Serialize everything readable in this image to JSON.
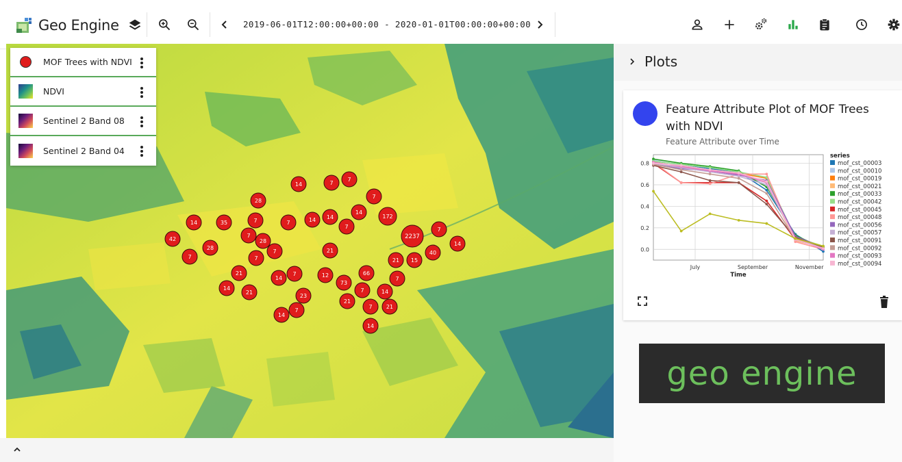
{
  "app": {
    "title": "Geo Engine"
  },
  "toolbar": {
    "time_range": "2019-06-01T12:00:00+00:00 - 2020-01-01T00:00:00+00:00",
    "icons": [
      "layers-icon",
      "zoom-in-icon",
      "zoom-out-icon",
      "time-back-icon",
      "time-forward-icon",
      "user-icon",
      "add-icon",
      "operators-icon",
      "plots-icon",
      "clipboard-icon",
      "history-icon",
      "settings-icon"
    ]
  },
  "layers": [
    {
      "label": "MOF Trees with NDVI",
      "symbol": "point",
      "color": "#e01c1c"
    },
    {
      "label": "NDVI",
      "symbol": "ndvi"
    },
    {
      "label": "Sentinel 2 Band 08",
      "symbol": "band"
    },
    {
      "label": "Sentinel 2 Band 04",
      "symbol": "band"
    }
  ],
  "map": {
    "clusters": [
      {
        "label": "14"
      },
      {
        "label": "7"
      },
      {
        "label": "7"
      },
      {
        "label": "7"
      },
      {
        "label": "28"
      },
      {
        "label": "14"
      },
      {
        "label": "172"
      },
      {
        "label": "14"
      },
      {
        "label": "35"
      },
      {
        "label": "7"
      },
      {
        "label": "7"
      },
      {
        "label": "14"
      },
      {
        "label": "14"
      },
      {
        "label": "7"
      },
      {
        "label": "7"
      },
      {
        "label": "2237"
      },
      {
        "label": "14"
      },
      {
        "label": "42"
      },
      {
        "label": "7"
      },
      {
        "label": "28"
      },
      {
        "label": "28"
      },
      {
        "label": "7"
      },
      {
        "label": "21"
      },
      {
        "label": "40"
      },
      {
        "label": "7"
      },
      {
        "label": "7"
      },
      {
        "label": "21"
      },
      {
        "label": "15"
      },
      {
        "label": "21"
      },
      {
        "label": "66"
      },
      {
        "label": "12"
      },
      {
        "label": "14"
      },
      {
        "label": "7"
      },
      {
        "label": "7"
      },
      {
        "label": "73"
      },
      {
        "label": "14"
      },
      {
        "label": "21"
      },
      {
        "label": "7"
      },
      {
        "label": "14"
      },
      {
        "label": "23"
      },
      {
        "label": "21"
      },
      {
        "label": "7"
      },
      {
        "label": "21"
      },
      {
        "label": "14"
      },
      {
        "label": "7"
      },
      {
        "label": "14"
      }
    ],
    "cluster_color": "#e01c1c"
  },
  "plots_panel": {
    "title": "Plots",
    "card": {
      "title": "Feature Attribute Plot of MOF Trees with NDVI",
      "subtitle": "Feature Attribute over Time",
      "avatar_color": "#3344ee"
    }
  },
  "chart_data": {
    "type": "line",
    "x": [
      "2019-06-01",
      "2019-07-01",
      "2019-08-01",
      "2019-09-01",
      "2019-10-01",
      "2019-11-01",
      "2019-12-01"
    ],
    "xlabel": "Time",
    "ylabel": "",
    "x_ticks": [
      "July",
      "September",
      "November"
    ],
    "y_ticks": [
      "0.0",
      "0.2",
      "0.4",
      "0.6",
      "0.8"
    ],
    "ylim": [
      -0.1,
      0.88
    ],
    "legend_title": "series",
    "legend_position": "right",
    "grid": true,
    "series": [
      {
        "name": "mof_cst_00003",
        "color": "#1f77b4",
        "values": [
          0.82,
          0.79,
          0.75,
          0.72,
          0.55,
          0.14,
          -0.02
        ]
      },
      {
        "name": "mof_cst_00010",
        "color": "#aec7e8",
        "values": [
          0.83,
          0.78,
          0.74,
          0.7,
          0.6,
          0.12,
          0.0
        ]
      },
      {
        "name": "mof_cst_00019",
        "color": "#ff7f0e",
        "values": [
          0.81,
          0.77,
          0.74,
          0.71,
          0.66,
          0.1,
          0.01
        ]
      },
      {
        "name": "mof_cst_00021",
        "color": "#ffbb78",
        "values": [
          0.8,
          0.76,
          0.73,
          0.7,
          0.62,
          0.08,
          0.02
        ]
      },
      {
        "name": "mof_cst_00033",
        "color": "#2ca02c",
        "values": [
          0.84,
          0.8,
          0.77,
          0.73,
          0.58,
          0.13,
          0.01
        ]
      },
      {
        "name": "mof_cst_00042",
        "color": "#98df8a",
        "values": [
          0.82,
          0.79,
          0.76,
          0.72,
          0.67,
          0.11,
          0.03
        ]
      },
      {
        "name": "mof_cst_00045",
        "color": "#d62728",
        "values": [
          0.8,
          0.62,
          0.62,
          0.62,
          0.45,
          0.09,
          0.01
        ]
      },
      {
        "name": "mof_cst_00048",
        "color": "#ff9896",
        "values": [
          0.81,
          0.62,
          0.61,
          0.7,
          0.7,
          0.07,
          0.0
        ]
      },
      {
        "name": "mof_cst_00056",
        "color": "#9467bd",
        "values": [
          0.79,
          0.75,
          0.73,
          0.69,
          0.64,
          0.12,
          0.02
        ]
      },
      {
        "name": "mof_cst_00057",
        "color": "#c5b0d5",
        "values": [
          0.8,
          0.76,
          0.72,
          0.68,
          0.6,
          0.1,
          0.01
        ]
      },
      {
        "name": "mof_cst_00091",
        "color": "#8c564b",
        "values": [
          0.78,
          0.72,
          0.64,
          0.62,
          0.42,
          0.11,
          0.02
        ]
      },
      {
        "name": "mof_cst_00092",
        "color": "#c49c94",
        "values": [
          0.79,
          0.74,
          0.7,
          0.66,
          0.52,
          0.09,
          0.01
        ]
      },
      {
        "name": "mof_cst_00093",
        "color": "#e377c2",
        "values": [
          0.81,
          0.77,
          0.73,
          0.7,
          0.62,
          0.1,
          0.0
        ]
      },
      {
        "name": "mof_cst_00094",
        "color": "#f7b6d2",
        "values": [
          0.8,
          0.78,
          0.74,
          0.71,
          0.63,
          0.09,
          0.01
        ]
      },
      {
        "name": "",
        "color": "#bcbd22",
        "values": [
          0.54,
          0.17,
          0.33,
          0.27,
          0.24,
          0.1,
          0.03
        ]
      }
    ]
  },
  "brand": {
    "text": "geo engine"
  }
}
